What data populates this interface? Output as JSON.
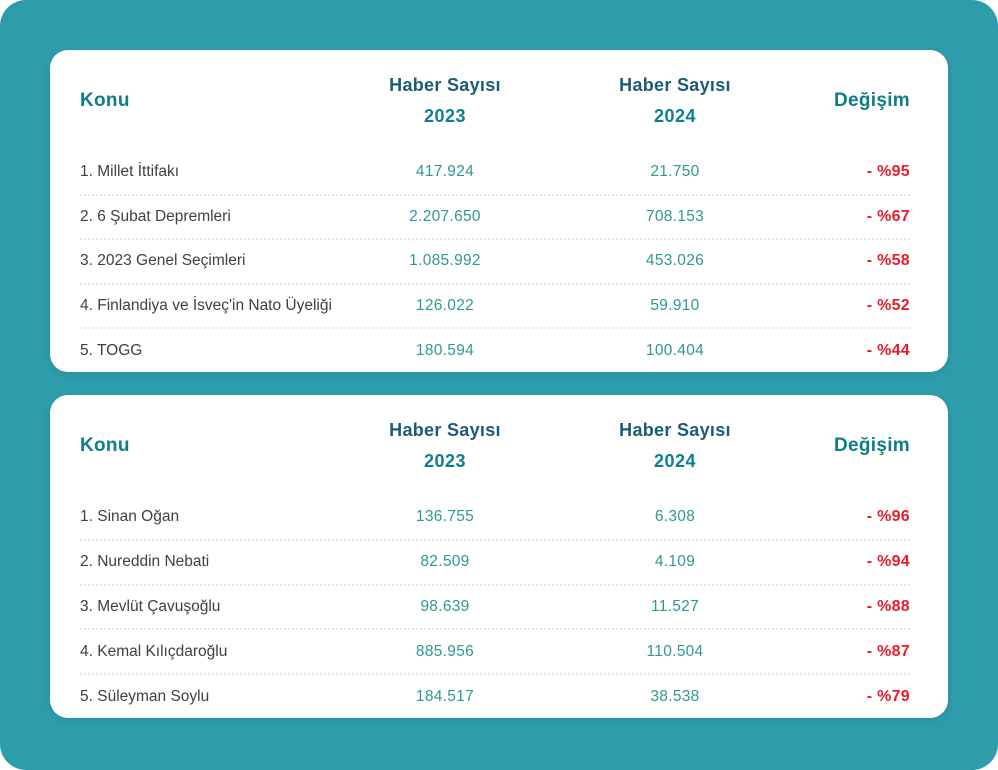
{
  "page": {
    "background_color": "#2E9DAB",
    "card_color": "#ffffff",
    "accent_header_dark": "#1C5B78",
    "accent_header_teal": "#0F7D89",
    "value_color": "#2F988F",
    "label_color": "#3B4148",
    "change_color": "#E81C2A"
  },
  "tables": [
    {
      "headers": {
        "konu": "Konu",
        "count1_line1": "Haber Sayısı",
        "count1_line2": "2023",
        "count2_line1": "Haber Sayısı",
        "count2_line2": "2024",
        "degisim": "Değişim"
      },
      "rows": [
        {
          "konu": "1. Millet İttifakı",
          "y2023": "417.924",
          "y2024": "21.750",
          "degisim": "- %95"
        },
        {
          "konu": "2. 6 Şubat Depremleri",
          "y2023": "2.207.650",
          "y2024": "708.153",
          "degisim": "- %67"
        },
        {
          "konu": "3. 2023 Genel Seçimleri",
          "y2023": "1.085.992",
          "y2024": "453.026",
          "degisim": "- %58"
        },
        {
          "konu": "4. Finlandiya ve İsveç'in Nato Üyeliği",
          "y2023": "126.022",
          "y2024": "59.910",
          "degisim": "- %52"
        },
        {
          "konu": "5. TOGG",
          "y2023": "180.594",
          "y2024": "100.404",
          "degisim": "- %44"
        }
      ]
    },
    {
      "headers": {
        "konu": "Konu",
        "count1_line1": "Haber Sayısı",
        "count1_line2": "2023",
        "count2_line1": "Haber Sayısı",
        "count2_line2": "2024",
        "degisim": "Değişim"
      },
      "rows": [
        {
          "konu": "1. Sinan Oğan",
          "y2023": "136.755",
          "y2024": "6.308",
          "degisim": "- %96"
        },
        {
          "konu": "2. Nureddin Nebati",
          "y2023": "82.509",
          "y2024": "4.109",
          "degisim": "- %94"
        },
        {
          "konu": "3. Mevlüt Çavuşoğlu",
          "y2023": "98.639",
          "y2024": "11.527",
          "degisim": "- %88"
        },
        {
          "konu": "4. Kemal Kılıçdaroğlu",
          "y2023": "885.956",
          "y2024": "110.504",
          "degisim": "- %87"
        },
        {
          "konu": "5. Süleyman Soylu",
          "y2023": "184.517",
          "y2024": "38.538",
          "degisim": "- %79"
        }
      ]
    }
  ]
}
